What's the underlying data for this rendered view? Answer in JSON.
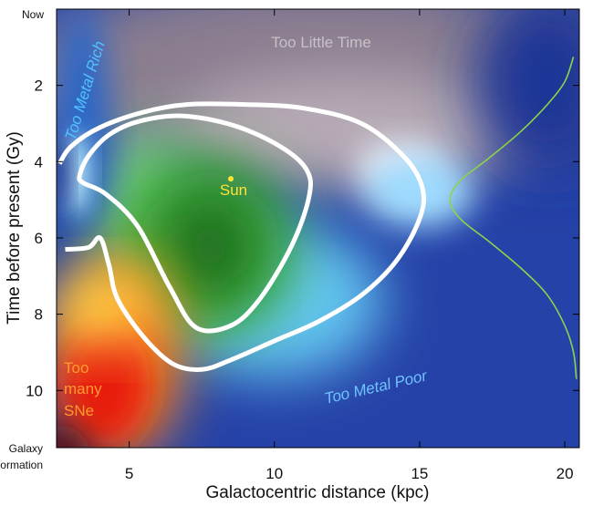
{
  "chart_data": {
    "type": "heatmap",
    "title": "",
    "xlabel": "Galactocentric distance (kpc)",
    "ylabel": "Time before present (Gy)",
    "xlim": [
      2.5,
      20.5
    ],
    "ylim": [
      0,
      11.5
    ],
    "y_inverted": true,
    "x_ticks": [
      5,
      10,
      15,
      20
    ],
    "y_ticks": [
      2,
      4,
      6,
      8,
      10
    ],
    "y_top_label": "Now",
    "y_bottom_label": [
      "Galaxy",
      "Formation"
    ],
    "regions": [
      {
        "name": "Too Little Time",
        "color": "#c8c0c6"
      },
      {
        "name": "Too Metal Rich",
        "color": "#4fc2ff"
      },
      {
        "name": "Too Metal Poor",
        "color": "#6fc3ff"
      },
      {
        "name": "Too many SNe",
        "lines": [
          "Too",
          "many",
          "SNe"
        ],
        "color": "#ff9a30"
      }
    ],
    "sun": {
      "label": "Sun",
      "x": 8.5,
      "y": 4.45,
      "color": "#ffe23a"
    },
    "contours": [
      {
        "name": "outer",
        "points": [
          [
            2.6,
            4.05
          ],
          [
            3.0,
            3.6
          ],
          [
            4.0,
            3.1
          ],
          [
            5.5,
            2.7
          ],
          [
            7.0,
            2.5
          ],
          [
            9.0,
            2.5
          ],
          [
            11.0,
            2.6
          ],
          [
            13.0,
            3.0
          ],
          [
            14.5,
            3.9
          ],
          [
            15.1,
            4.7
          ],
          [
            15.0,
            5.5
          ],
          [
            14.2,
            6.6
          ],
          [
            13.0,
            7.5
          ],
          [
            11.5,
            8.2
          ],
          [
            10.0,
            8.7
          ],
          [
            8.5,
            9.2
          ],
          [
            7.5,
            9.45
          ],
          [
            6.5,
            9.3
          ],
          [
            5.5,
            8.6
          ],
          [
            4.6,
            7.6
          ],
          [
            4.3,
            6.7
          ],
          [
            4.0,
            6.0
          ],
          [
            3.6,
            6.25
          ],
          [
            2.8,
            6.3
          ]
        ]
      },
      {
        "name": "inner",
        "points": [
          [
            3.3,
            4.35
          ],
          [
            3.6,
            3.85
          ],
          [
            4.3,
            3.3
          ],
          [
            5.3,
            2.95
          ],
          [
            6.8,
            2.8
          ],
          [
            8.6,
            3.05
          ],
          [
            10.2,
            3.6
          ],
          [
            11.1,
            4.2
          ],
          [
            11.2,
            4.9
          ],
          [
            10.6,
            6.2
          ],
          [
            9.5,
            7.6
          ],
          [
            8.5,
            8.3
          ],
          [
            7.3,
            8.35
          ],
          [
            6.4,
            7.3
          ],
          [
            5.3,
            5.7
          ],
          [
            4.2,
            4.85
          ],
          [
            3.4,
            4.55
          ]
        ]
      }
    ],
    "distribution_curve": {
      "color": "#8bd44a",
      "points": [
        [
          20.3,
          1.25
        ],
        [
          20.0,
          1.9
        ],
        [
          19.4,
          2.5
        ],
        [
          18.5,
          3.2
        ],
        [
          17.4,
          3.9
        ],
        [
          16.4,
          4.5
        ],
        [
          16.05,
          5.0
        ],
        [
          16.4,
          5.5
        ],
        [
          17.4,
          6.1
        ],
        [
          18.5,
          6.8
        ],
        [
          19.4,
          7.5
        ],
        [
          20.0,
          8.3
        ],
        [
          20.3,
          9.0
        ],
        [
          20.4,
          9.7
        ]
      ]
    }
  }
}
